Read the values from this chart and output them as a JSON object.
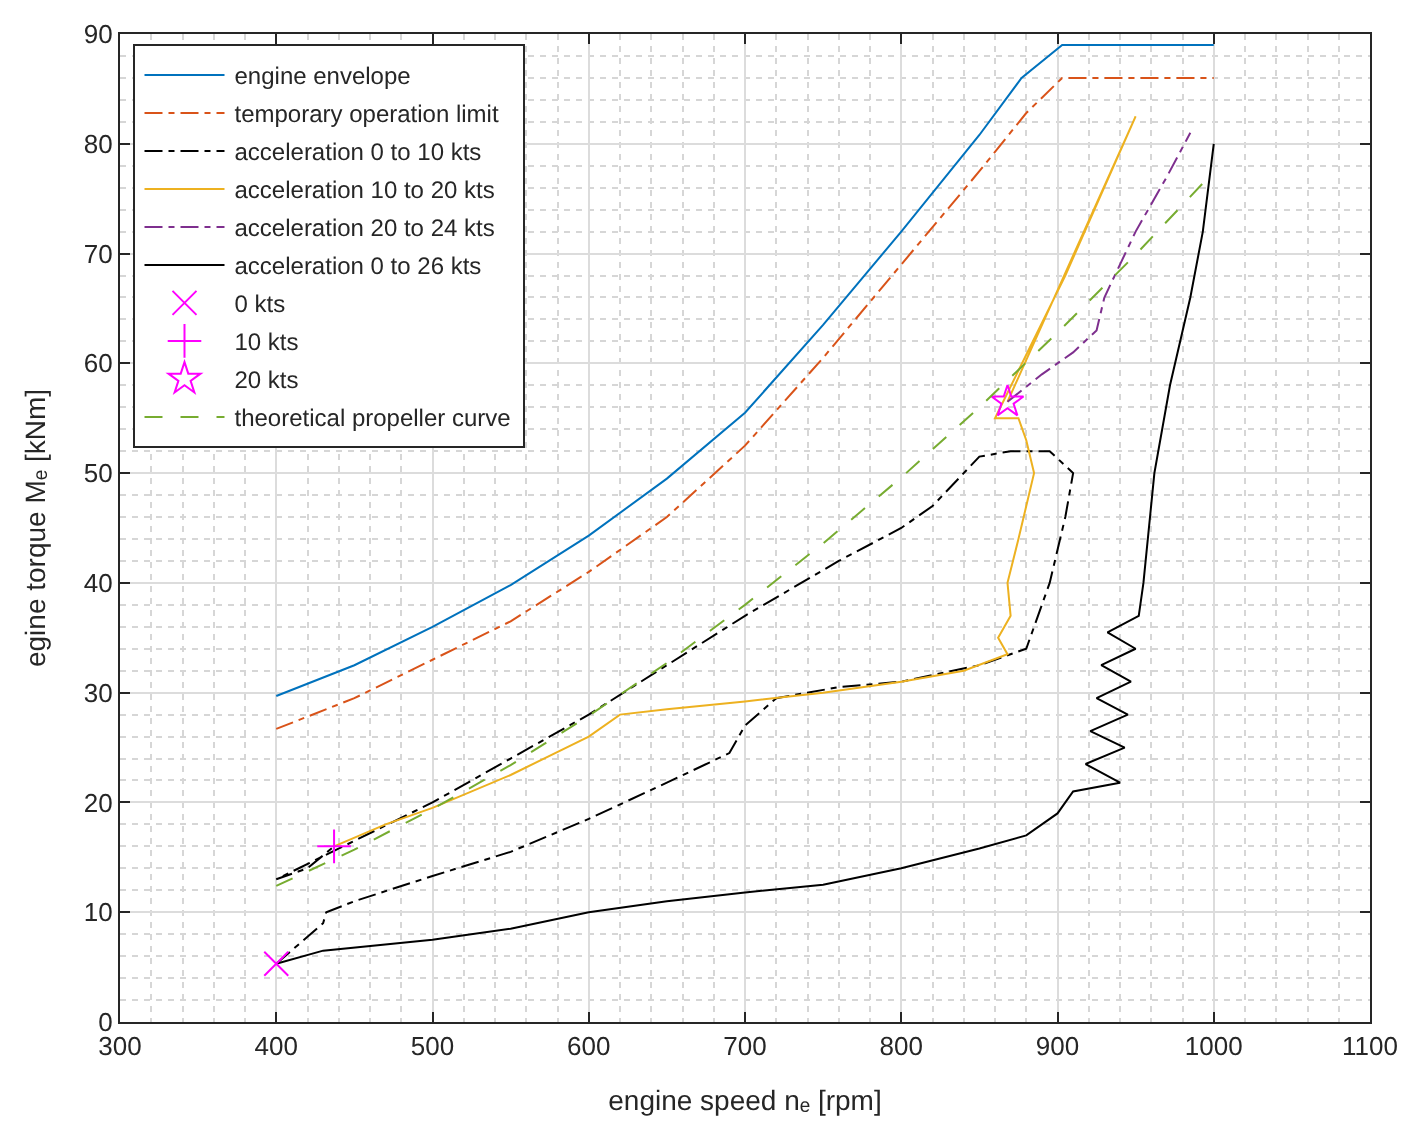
{
  "chart_data": {
    "type": "line",
    "xlabel": "engine speed nₑ [rpm]",
    "ylabel": "egine torque Mₑ [kNm]",
    "xlim": [
      300,
      1100
    ],
    "xticks": [
      300,
      400,
      500,
      600,
      700,
      800,
      900,
      1000,
      1100
    ],
    "ylim": [
      0,
      90
    ],
    "yticks": [
      0,
      10,
      20,
      30,
      40,
      50,
      60,
      70,
      80,
      90
    ],
    "grid": true,
    "legend": "top left",
    "series": [
      {
        "name": "engine envelope",
        "color": "#0072bd",
        "line_style": "solid",
        "marker": "none",
        "x": [
          400,
          450,
          500,
          550,
          600,
          650,
          700,
          750,
          800,
          850,
          877,
          903,
          1000
        ],
        "values": [
          29.7,
          32.5,
          36,
          39.8,
          44.3,
          49.5,
          55.5,
          63.5,
          72,
          80.8,
          86,
          89,
          89
        ]
      },
      {
        "name": "temporary operation limit",
        "color": "#d95319",
        "line_style": "dashdot",
        "marker": "none",
        "x": [
          400,
          450,
          500,
          550,
          600,
          650,
          700,
          750,
          800,
          850,
          880,
          903,
          1000
        ],
        "values": [
          26.7,
          29.5,
          33,
          36.5,
          41,
          46,
          52.5,
          60.5,
          69,
          77.5,
          82.8,
          86,
          86
        ]
      },
      {
        "name": "acceleration 0 to 10 kts",
        "color": "#000000",
        "line_style": "dashdot",
        "marker": "none",
        "x": [
          400,
          430,
          432,
          450,
          500,
          550,
          600,
          650,
          690,
          700,
          720,
          760,
          800,
          850,
          880,
          895,
          905,
          910,
          895,
          870,
          850,
          820,
          800,
          760,
          700,
          650,
          600,
          550,
          500,
          450,
          400,
          420,
          437
        ],
        "values": [
          5.3,
          9,
          10,
          11,
          13.3,
          15.5,
          18.5,
          21.8,
          24.5,
          27,
          29.5,
          30.5,
          31,
          32.5,
          34,
          40,
          46,
          50,
          52,
          52,
          51.5,
          47,
          45,
          42,
          37,
          32.5,
          28,
          24,
          20,
          16.5,
          13,
          14,
          16
        ]
      },
      {
        "name": "acceleration 10 to 20 kts",
        "color": "#edb120",
        "line_style": "solid",
        "marker": "none",
        "x": [
          437,
          470,
          500,
          550,
          600,
          620,
          650,
          700,
          750,
          800,
          840,
          868,
          862,
          870,
          868,
          875,
          880,
          885,
          880,
          875,
          860,
          905,
          950,
          868
        ],
        "values": [
          16,
          18,
          19.5,
          22.5,
          26,
          28,
          28.5,
          29.2,
          30,
          31,
          32,
          33.5,
          35,
          37,
          40,
          44,
          47,
          50,
          53,
          55,
          55,
          68,
          82.5,
          56.5
        ]
      },
      {
        "name": "acceleration 20 to 24 kts",
        "color": "#7e2f8e",
        "line_style": "dashdot",
        "marker": "none",
        "x": [
          868,
          890,
          910,
          925,
          930,
          950,
          970,
          985
        ],
        "values": [
          56.5,
          59,
          61,
          63,
          66,
          72,
          77,
          81
        ]
      },
      {
        "name": "acceleration 0 to 26 kts",
        "color": "#000000",
        "line_style": "solid",
        "marker": "none",
        "x": [
          400,
          430,
          500,
          550,
          600,
          650,
          700,
          750,
          800,
          850,
          880,
          900,
          910,
          940,
          918,
          943,
          921,
          945,
          925,
          947,
          928,
          950,
          932,
          952,
          955,
          962,
          972,
          985,
          993,
          1000
        ],
        "values": [
          5.3,
          6.5,
          7.5,
          8.5,
          10,
          11,
          11.8,
          12.5,
          14,
          15.8,
          17,
          19,
          21,
          21.8,
          23.5,
          25,
          26.5,
          28,
          29.5,
          31,
          32.5,
          34,
          35.5,
          37,
          40,
          50,
          58,
          66,
          72,
          80
        ]
      },
      {
        "name": "0 kts",
        "color": "#ff00ff",
        "type": "scatter",
        "marker": "x",
        "x": [
          400
        ],
        "values": [
          5.3
        ]
      },
      {
        "name": "10 kts",
        "color": "#ff00ff",
        "type": "scatter",
        "marker": "cross",
        "x": [
          437
        ],
        "values": [
          16
        ]
      },
      {
        "name": "20 kts",
        "color": "#ff00ff",
        "type": "scatter",
        "marker": "star",
        "x": [
          868
        ],
        "values": [
          56.5
        ]
      },
      {
        "name": "theoretical propeller curve",
        "color": "#77ac30",
        "line_style": "dashed",
        "marker": "none",
        "x": [
          400,
          450,
          500,
          550,
          600,
          650,
          700,
          750,
          800,
          850,
          900,
          950,
          995
        ],
        "values": [
          12.4,
          15.7,
          19.4,
          23.4,
          27.9,
          32.7,
          38.0,
          43.6,
          49.6,
          56.0,
          62.8,
          69.9,
          76.7
        ]
      }
    ]
  }
}
